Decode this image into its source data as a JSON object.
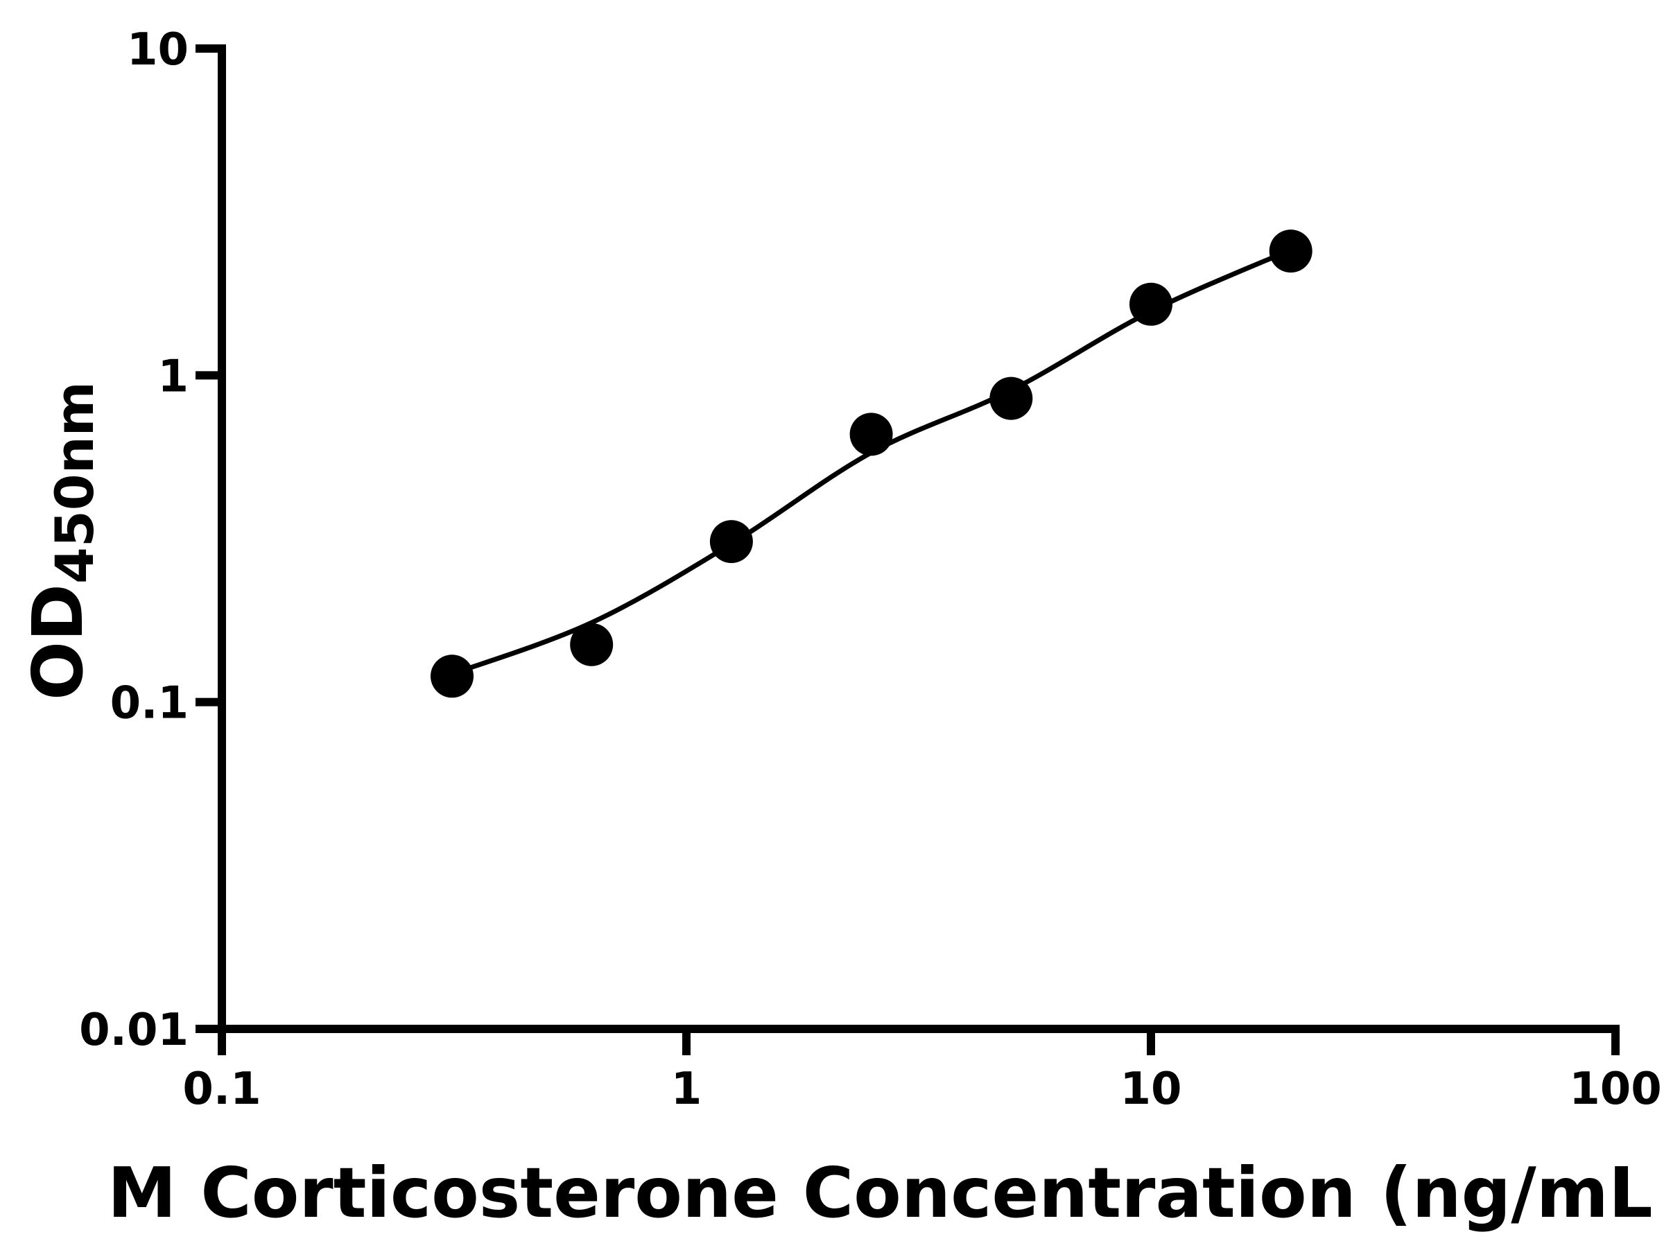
{
  "chart_data": {
    "type": "scatter",
    "title": "",
    "xlabel": "M Corticosterone Concentration (ng/mL",
    "ylabel_base": "OD",
    "ylabel_sub": "450nm",
    "x_scale": "log",
    "y_scale": "log",
    "xlim": [
      0.1,
      100
    ],
    "ylim": [
      0.01,
      10
    ],
    "x_ticks": [
      "0.1",
      "1",
      "10",
      "100"
    ],
    "y_ticks": [
      "0.01",
      "0.1",
      "1",
      "10"
    ],
    "grid": false,
    "legend": null,
    "marker_color": "#000000",
    "line_color": "#000000",
    "background_color": "#ffffff",
    "points": [
      {
        "x": 0.313,
        "y": 0.12
      },
      {
        "x": 0.625,
        "y": 0.15
      },
      {
        "x": 1.25,
        "y": 0.31
      },
      {
        "x": 2.5,
        "y": 0.66
      },
      {
        "x": 5,
        "y": 0.85
      },
      {
        "x": 10,
        "y": 1.65
      },
      {
        "x": 20,
        "y": 2.4
      }
    ],
    "fit_curve": [
      {
        "x": 0.313,
        "y": 0.122
      },
      {
        "x": 0.625,
        "y": 0.175
      },
      {
        "x": 1.25,
        "y": 0.305
      },
      {
        "x": 2.5,
        "y": 0.58
      },
      {
        "x": 5,
        "y": 0.9
      },
      {
        "x": 10,
        "y": 1.57
      },
      {
        "x": 20,
        "y": 2.42
      }
    ]
  }
}
